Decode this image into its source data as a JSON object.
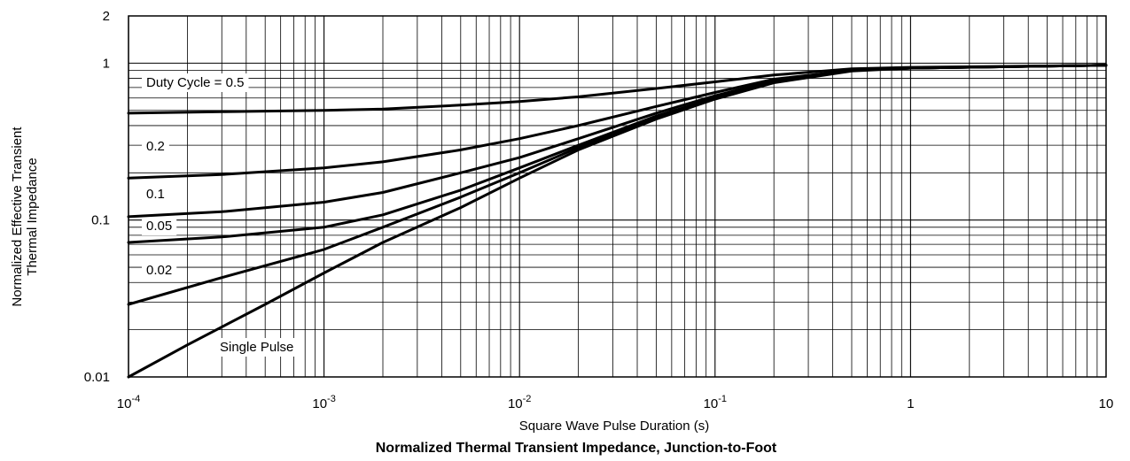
{
  "chart_data": {
    "type": "line",
    "title": "Normalized Thermal Transient Impedance, Junction-to-Foot",
    "xlabel": "Square Wave Pulse Duration (s)",
    "ylabel_lines": [
      "Normalized Effective Transient",
      "Thermal Impedance"
    ],
    "x_scale": "log",
    "y_scale": "log",
    "xlim": [
      0.0001,
      10
    ],
    "ylim": [
      0.01,
      2
    ],
    "grid": true,
    "x_ticks": [
      {
        "base": "10",
        "exp": "-4"
      },
      {
        "base": "10",
        "exp": "-3"
      },
      {
        "base": "10",
        "exp": "-2"
      },
      {
        "base": "10",
        "exp": "-1"
      },
      {
        "base": "1",
        "exp": ""
      },
      {
        "base": "10",
        "exp": ""
      }
    ],
    "y_ticks": [
      "0.01",
      "0.1",
      "1",
      "2"
    ],
    "series": [
      {
        "name": "Duty Cycle = 0.5",
        "x": [
          0.0001,
          0.0003,
          0.001,
          0.002,
          0.005,
          0.01,
          0.02,
          0.05,
          0.1,
          0.2,
          0.5,
          1,
          10
        ],
        "y": [
          0.48,
          0.49,
          0.5,
          0.51,
          0.54,
          0.57,
          0.61,
          0.69,
          0.76,
          0.84,
          0.92,
          0.94,
          0.97
        ]
      },
      {
        "name": "0.2",
        "x": [
          0.0001,
          0.0003,
          0.001,
          0.002,
          0.005,
          0.01,
          0.02,
          0.05,
          0.1,
          0.2,
          0.5,
          1,
          10
        ],
        "y": [
          0.185,
          0.195,
          0.215,
          0.235,
          0.28,
          0.33,
          0.4,
          0.53,
          0.65,
          0.79,
          0.9,
          0.93,
          0.97
        ]
      },
      {
        "name": "0.1",
        "x": [
          0.0001,
          0.0003,
          0.001,
          0.002,
          0.005,
          0.01,
          0.02,
          0.05,
          0.1,
          0.2,
          0.5,
          1,
          10
        ],
        "y": [
          0.105,
          0.113,
          0.13,
          0.15,
          0.2,
          0.25,
          0.33,
          0.48,
          0.62,
          0.77,
          0.9,
          0.93,
          0.97
        ]
      },
      {
        "name": "0.05",
        "x": [
          0.0001,
          0.0003,
          0.001,
          0.002,
          0.005,
          0.01,
          0.02,
          0.05,
          0.1,
          0.2,
          0.5,
          1,
          10
        ],
        "y": [
          0.072,
          0.078,
          0.09,
          0.108,
          0.155,
          0.215,
          0.3,
          0.46,
          0.6,
          0.76,
          0.9,
          0.93,
          0.97
        ]
      },
      {
        "name": "0.02",
        "x": [
          0.0001,
          0.0003,
          0.001,
          0.002,
          0.005,
          0.01,
          0.02,
          0.05,
          0.1,
          0.2,
          0.5,
          1,
          10
        ],
        "y": [
          0.029,
          0.043,
          0.065,
          0.09,
          0.14,
          0.2,
          0.29,
          0.45,
          0.6,
          0.76,
          0.9,
          0.93,
          0.97
        ]
      },
      {
        "name": "Single Pulse",
        "x": [
          0.0001,
          0.0002,
          0.0005,
          0.001,
          0.002,
          0.005,
          0.01,
          0.02,
          0.05,
          0.1,
          0.2,
          0.5,
          1,
          10
        ],
        "y": [
          0.01,
          0.016,
          0.029,
          0.046,
          0.072,
          0.12,
          0.185,
          0.28,
          0.44,
          0.59,
          0.75,
          0.89,
          0.93,
          0.97
        ]
      }
    ]
  }
}
